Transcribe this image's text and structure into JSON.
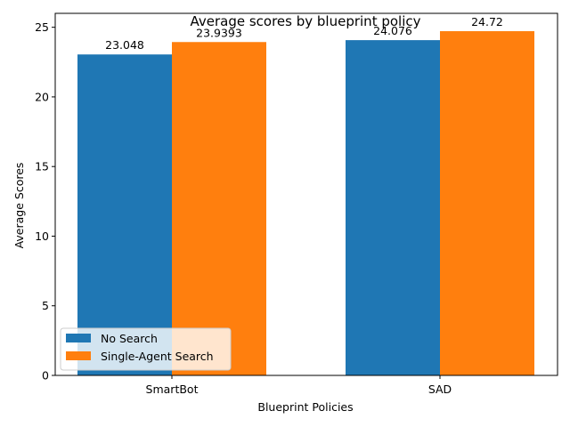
{
  "chart_data": {
    "type": "bar",
    "title": "Average scores by blueprint policy",
    "xlabel": "Blueprint Policies",
    "ylabel": "Average Scores",
    "categories": [
      "SmartBot",
      "SAD"
    ],
    "series": [
      {
        "name": "No Search",
        "values": [
          23.048,
          24.076
        ],
        "labels": [
          "23.048",
          "24.076"
        ],
        "color": "#1f77b4"
      },
      {
        "name": "Single-Agent Search",
        "values": [
          23.9393,
          24.72
        ],
        "labels": [
          "23.9393",
          "24.72"
        ],
        "color": "#ff7f0e"
      }
    ],
    "ylim": [
      0,
      26
    ],
    "yticks": [
      0,
      5,
      10,
      15,
      20,
      25
    ],
    "grid": false,
    "legend_position": "lower-left"
  }
}
